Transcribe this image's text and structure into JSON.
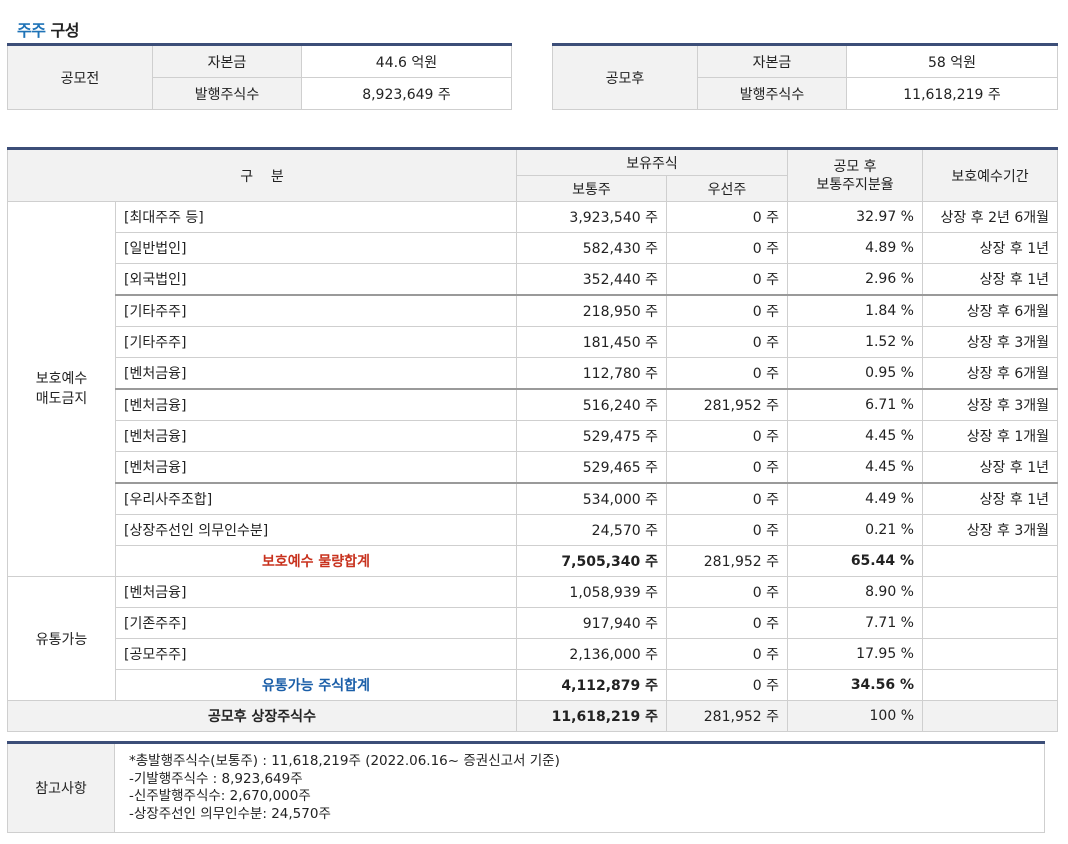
{
  "title": {
    "part1": "주주",
    "part2": " 구성"
  },
  "before": {
    "label": "공모전",
    "capital_label": "자본금",
    "capital_value": "44.6 억원",
    "shares_label": "발행주식수",
    "shares_value": "8,923,649 주"
  },
  "after": {
    "label": "공모후",
    "capital_label": "자본금",
    "capital_value": "58 억원",
    "shares_label": "발행주식수",
    "shares_value": "11,618,219 주"
  },
  "main": {
    "headers": {
      "category": "구    분",
      "holding": "보유주식",
      "common": "보통주",
      "preferred": "우선주",
      "ratio": "공모 후\n보통주지분율",
      "lockup": "보호예수기간"
    },
    "group1": {
      "label": "보호예수\n매도금지",
      "rows": [
        {
          "name": "[최대주주 등]",
          "common": "3,923,540 주",
          "preferred": "0 주",
          "ratio": "32.97 %",
          "period": "상장 후 2년 6개월"
        },
        {
          "name": "[일반법인]",
          "common": "582,430 주",
          "preferred": "0 주",
          "ratio": "4.89 %",
          "period": "상장 후 1년"
        },
        {
          "name": "[외국법인]",
          "common": "352,440 주",
          "preferred": "0 주",
          "ratio": "2.96 %",
          "period": "상장 후 1년"
        },
        {
          "name": "[기타주주]",
          "common": "218,950 주",
          "preferred": "0 주",
          "ratio": "1.84 %",
          "period": "상장 후 6개월"
        },
        {
          "name": "[기타주주]",
          "common": "181,450 주",
          "preferred": "0 주",
          "ratio": "1.52 %",
          "period": "상장 후 3개월"
        },
        {
          "name": "[벤처금융]",
          "common": "112,780 주",
          "preferred": "0 주",
          "ratio": "0.95 %",
          "period": "상장 후 6개월"
        },
        {
          "name": "[벤처금융]",
          "common": "516,240 주",
          "preferred": "281,952 주",
          "ratio": "6.71 %",
          "period": "상장 후 3개월"
        },
        {
          "name": "[벤처금융]",
          "common": "529,475 주",
          "preferred": "0 주",
          "ratio": "4.45 %",
          "period": "상장 후 1개월"
        },
        {
          "name": "[벤처금융]",
          "common": "529,465 주",
          "preferred": "0 주",
          "ratio": "4.45 %",
          "period": "상장 후 1년"
        },
        {
          "name": "[우리사주조합]",
          "common": "534,000 주",
          "preferred": "0 주",
          "ratio": "4.49 %",
          "period": "상장 후 1년"
        },
        {
          "name": "[상장주선인 의무인수분]",
          "common": "24,570 주",
          "preferred": "0 주",
          "ratio": "0.21 %",
          "period": "상장 후 3개월"
        }
      ],
      "subtotal": {
        "label": "보호예수 물량합계",
        "common": "7,505,340 주",
        "preferred": "281,952 주",
        "ratio": "65.44 %"
      }
    },
    "group2": {
      "label": "유통가능",
      "rows": [
        {
          "name": "[벤처금융]",
          "common": "1,058,939 주",
          "preferred": "0 주",
          "ratio": "8.90 %"
        },
        {
          "name": "[기존주주]",
          "common": "917,940 주",
          "preferred": "0 주",
          "ratio": "7.71 %"
        },
        {
          "name": "[공모주주]",
          "common": "2,136,000 주",
          "preferred": "0 주",
          "ratio": "17.95 %"
        }
      ],
      "subtotal": {
        "label": "유통가능 주식합계",
        "common": "4,112,879 주",
        "preferred": "0 주",
        "ratio": "34.56 %"
      }
    },
    "total": {
      "label": "공모후 상장주식수",
      "common": "11,618,219 주",
      "preferred": "281,952 주",
      "ratio": "100 %"
    }
  },
  "note": {
    "label": "참고사항",
    "lines": [
      "*총발행주식수(보통주) : 11,618,219주 (2022.06.16~ 증권신고서 기준)",
      "-기발행주식수 : 8,923,649주",
      "-신주발행주식수: 2,670,000주",
      "-상장주선인 의무인수분: 24,570주"
    ]
  }
}
